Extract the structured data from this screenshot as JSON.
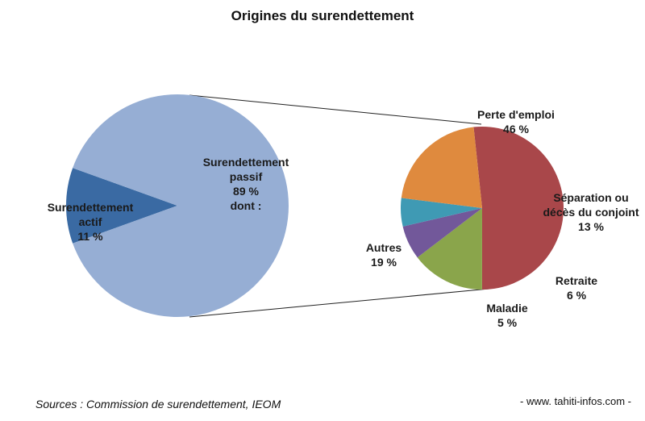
{
  "chart_data": {
    "type": "pie",
    "title": "Origines du surendettement",
    "main_pie": {
      "slices": [
        {
          "label_lines": [
            "Surendettement",
            "actif"
          ],
          "value_label": "11 %",
          "value": 11,
          "color": "#3a6aa3"
        },
        {
          "label_lines": [
            "Surendettement",
            "passif"
          ],
          "value_label": "89 %",
          "extra": "dont :",
          "value": 89,
          "color": "#96aed4"
        }
      ]
    },
    "sub_pie": {
      "slices": [
        {
          "label_lines": [
            "Perte d'emploi"
          ],
          "value_label": "46 %",
          "value": 46,
          "color": "#a9474a"
        },
        {
          "label_lines": [
            "Séparation ou",
            "décès du conjoint"
          ],
          "value_label": "13 %",
          "value": 13,
          "color": "#8aa54b"
        },
        {
          "label_lines": [
            "Retraite"
          ],
          "value_label": "6 %",
          "value": 6,
          "color": "#72589a"
        },
        {
          "label_lines": [
            "Maladie"
          ],
          "value_label": "5 %",
          "value": 5,
          "color": "#3f9ab4"
        },
        {
          "label_lines": [
            "Autres"
          ],
          "value_label": "19 %",
          "value": 19,
          "color": "#df8a3e"
        }
      ]
    }
  },
  "footer": {
    "source": "Sources : Commission de surendettement, IEOM",
    "website": "- www. tahiti-infos.com -"
  }
}
